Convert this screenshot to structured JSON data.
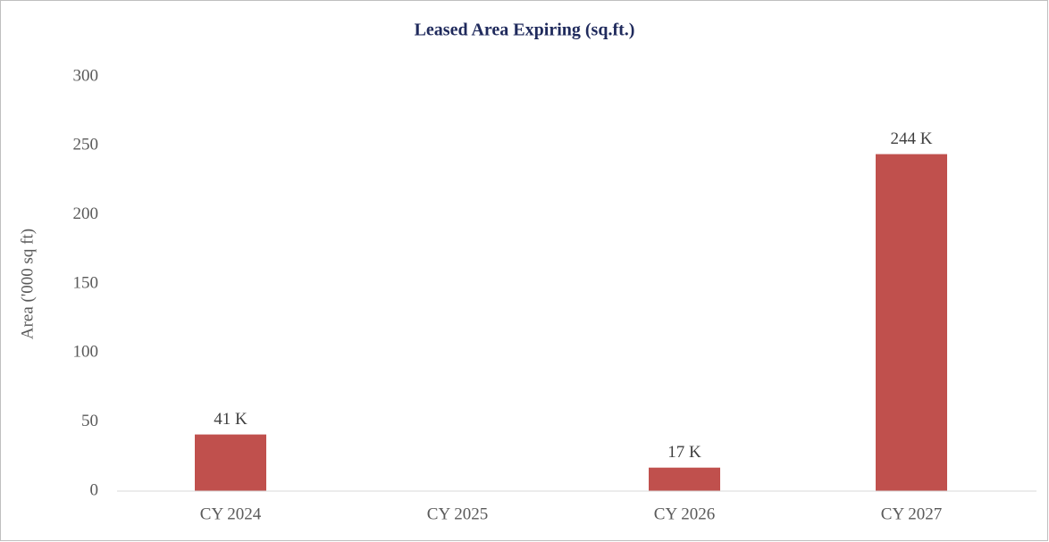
{
  "chart_data": {
    "type": "bar",
    "title": "Leased Area Expiring (sq.ft.)",
    "y_label": "Area ('000 sq ft)",
    "categories": [
      "CY 2024",
      "CY 2025",
      "CY 2026",
      "CY 2027"
    ],
    "values": [
      41,
      null,
      17,
      244
    ],
    "value_labels": [
      "41 K",
      null,
      "17 K",
      "244 K"
    ],
    "color": "#c0504d",
    "ylim": [
      0,
      300
    ],
    "yticks": [
      0,
      50,
      100,
      150,
      200,
      250,
      300
    ],
    "grid": false
  }
}
